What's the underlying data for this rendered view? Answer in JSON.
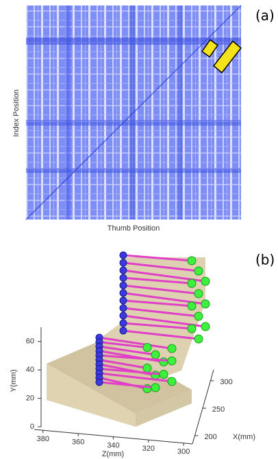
{
  "chart_data": [
    {
      "type": "heatmap",
      "label": "(a)",
      "xlabel": "Thumb Position",
      "ylabel": "Index Position"
    },
    {
      "type": "scatter3d",
      "label": "(b)",
      "xlabel": "X(mm)",
      "ylabel": "Y(mm)",
      "zlabel": "Z(mm)",
      "xlim": [
        185,
        320
      ],
      "xticks": [
        200,
        250,
        300
      ],
      "ylim": [
        0,
        70
      ],
      "yticks": [
        0,
        20,
        40,
        60
      ],
      "zlim": [
        385,
        295
      ],
      "zticks": [
        380,
        360,
        340,
        320,
        300
      ]
    }
  ]
}
